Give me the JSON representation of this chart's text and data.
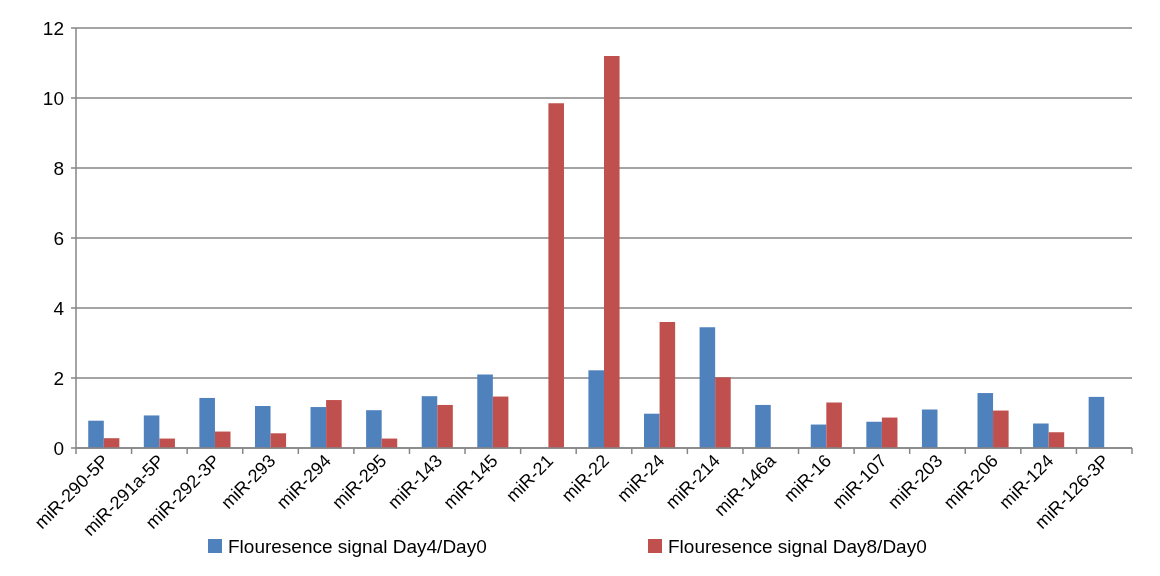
{
  "chart_data": {
    "type": "bar",
    "categories": [
      "miR-290-5P",
      "miR-291a-5P",
      "miR-292-3P",
      "miR-293",
      "miR-294",
      "miR-295",
      "miR-143",
      "miR-145",
      "miR-21",
      "miR-22",
      "miR-24",
      "miR-214",
      "miR-146a",
      "miR-16",
      "miR-107",
      "miR-203",
      "miR-206",
      "miR-124",
      "miR-126-3P"
    ],
    "series": [
      {
        "name": "Flouresence signal Day4/Day0",
        "color": "#4f81bd",
        "values": [
          0.78,
          0.93,
          1.43,
          1.2,
          1.17,
          1.08,
          1.48,
          2.1,
          null,
          2.22,
          0.98,
          3.45,
          1.23,
          0.67,
          0.75,
          1.1,
          1.57,
          0.7,
          1.46
        ]
      },
      {
        "name": "Flouresence signal Day8/Day0",
        "color": "#c0504d",
        "values": [
          0.28,
          0.27,
          0.47,
          0.42,
          1.37,
          0.27,
          1.23,
          1.47,
          9.85,
          11.2,
          3.6,
          2.02,
          null,
          1.3,
          0.87,
          null,
          1.07,
          0.45,
          null
        ]
      }
    ],
    "ylim": [
      0,
      12
    ],
    "yticks": [
      0,
      2,
      4,
      6,
      8,
      10,
      12
    ],
    "grid": "y",
    "legend": "bottom"
  }
}
